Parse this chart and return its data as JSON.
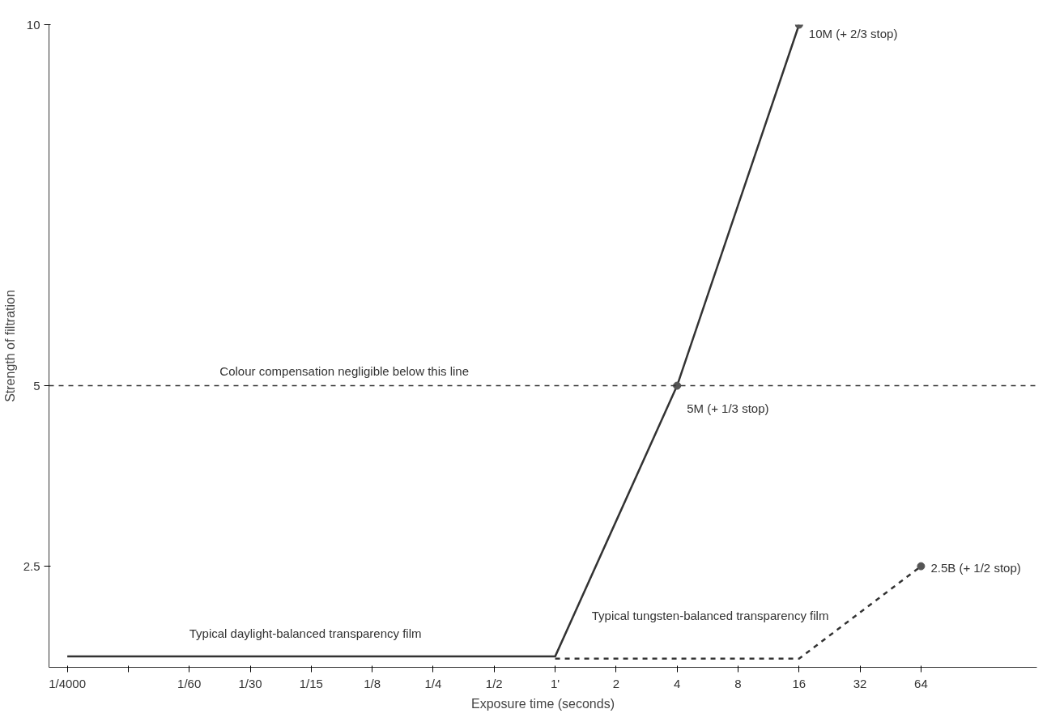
{
  "chart_data": {
    "type": "line",
    "xlabel": "Exposure time (seconds)",
    "ylabel": "Strength of filtration",
    "categories": [
      "1/4000",
      null,
      "1/60",
      "1/30",
      "1/15",
      "1/8",
      "1/4",
      "1/2",
      "1'",
      "2",
      "4",
      "8",
      "16",
      "32",
      "64"
    ],
    "series": [
      {
        "name": "Typical daylight-balanced transparency film",
        "color": "#333333",
        "line_style": "solid",
        "values": [
          1.25,
          1.25,
          1.25,
          1.25,
          1.25,
          1.25,
          1.25,
          1.25,
          1.25,
          null,
          5,
          null,
          10,
          null,
          null
        ]
      },
      {
        "name": "Typical tungsten-balanced transparency film",
        "color": "#333333",
        "line_style": "dashed",
        "values": [
          null,
          null,
          null,
          null,
          null,
          null,
          null,
          null,
          1.22,
          1.22,
          1.22,
          1.22,
          1.22,
          null,
          2.5
        ]
      }
    ],
    "annotations": [
      {
        "text": "10M (+ 2/3 stop)",
        "x": "16",
        "y": 10
      },
      {
        "text": "5M (+ 1/3 stop)",
        "x": "4",
        "y": 5
      },
      {
        "text": "2.5B (+ 1/2 stop)",
        "x": "64",
        "y": 2.5
      }
    ],
    "ref_lines": [
      {
        "axis": "y",
        "value": 5,
        "label": "Colour compensation negligible below this line",
        "line_style": "dashed",
        "color": "#333333"
      }
    ],
    "ylim": [
      1.1,
      10
    ],
    "yticks": [
      2.5,
      5,
      10
    ]
  }
}
